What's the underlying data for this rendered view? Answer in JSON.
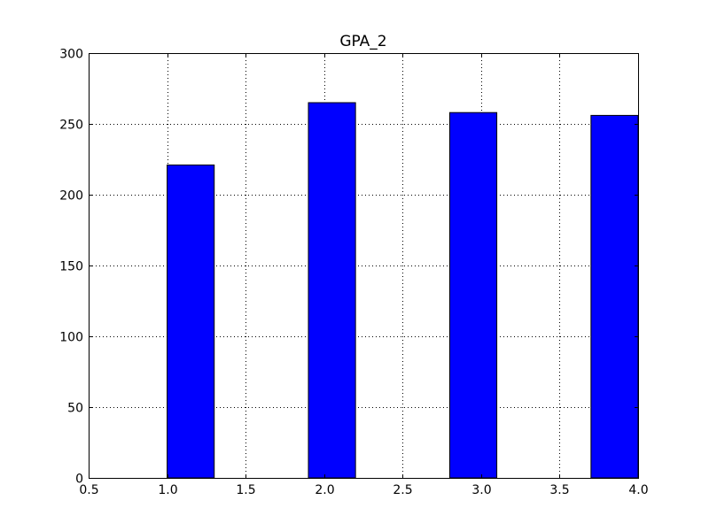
{
  "chart_data": {
    "type": "bar",
    "title": "GPA_2",
    "xlabel": "",
    "ylabel": "",
    "xlim": [
      0.5,
      4.0
    ],
    "ylim": [
      0,
      300
    ],
    "grid": true,
    "x_ticks": [
      "0.5",
      "1.0",
      "1.5",
      "2.0",
      "2.5",
      "3.0",
      "3.5",
      "4.0"
    ],
    "y_ticks": [
      "0",
      "50",
      "100",
      "150",
      "200",
      "250",
      "300"
    ],
    "bars": [
      {
        "x_start": 1.0,
        "x_end": 1.3,
        "value": 221
      },
      {
        "x_start": 1.9,
        "x_end": 2.2,
        "value": 265
      },
      {
        "x_start": 2.8,
        "x_end": 3.1,
        "value": 258
      },
      {
        "x_start": 3.7,
        "x_end": 4.0,
        "value": 256
      }
    ],
    "bar_color": "#0000ff",
    "edge_color": "#000000"
  }
}
